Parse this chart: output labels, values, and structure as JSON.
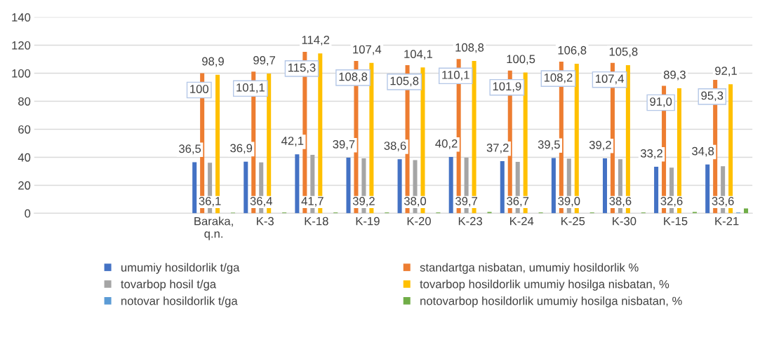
{
  "chart_data": {
    "type": "bar",
    "categories": [
      null,
      null,
      null,
      "Baraka,\nq.n.",
      "K-3",
      "K-18",
      "K-19",
      "K-20",
      "K-23",
      "K-24",
      "K-25",
      "K-30",
      "K-15",
      "K-21"
    ],
    "series": [
      {
        "name": "umumiy hosildorlik t/ga",
        "color": "#4472c4",
        "values": [
          null,
          null,
          null,
          36.5,
          36.9,
          42.1,
          39.7,
          38.6,
          40.2,
          37.2,
          39.5,
          39.2,
          33.2,
          34.8
        ],
        "value_labels": [
          null,
          null,
          null,
          "36,5",
          "36,9",
          "42,1",
          "39,7",
          "38,6",
          "40,2",
          "37,2",
          "39,5",
          "39,2",
          "33,2",
          "34,8"
        ]
      },
      {
        "name": "standartga nisbatan, umumiy hosildorlik %",
        "color": "#ed7d31",
        "values": [
          null,
          null,
          null,
          100,
          101.1,
          115.3,
          108.8,
          105.8,
          110.1,
          101.9,
          108.2,
          107.4,
          91.0,
          95.3
        ],
        "value_labels": [
          null,
          null,
          null,
          "100",
          "101,1",
          "115,3",
          "108,8",
          "105,8",
          "110,1",
          "101,9",
          "108,2",
          "107,4",
          "91,0",
          "95,3"
        ]
      },
      {
        "name": "tovarbop hosil t/ga",
        "color": "#a5a5a5",
        "values": [
          null,
          null,
          null,
          36.1,
          36.4,
          41.7,
          39.2,
          38.0,
          39.7,
          36.7,
          39.0,
          38.6,
          32.6,
          33.6
        ],
        "value_labels": [
          null,
          null,
          null,
          "36,1",
          "36,4",
          "41,7",
          "39,2",
          "38,0",
          "39,7",
          "36,7",
          "39,0",
          "38,6",
          "32,6",
          "33,6"
        ]
      },
      {
        "name": "tovarbop hosildorlik umumiy hosilga nisbatan, %",
        "color": "#ffc000",
        "values": [
          null,
          null,
          null,
          98.9,
          99.7,
          114.2,
          107.4,
          104.1,
          108.8,
          100.5,
          106.8,
          105.8,
          89.3,
          92.1
        ],
        "value_labels": [
          null,
          null,
          null,
          "98,9",
          "99,7",
          "114,2",
          "107,4",
          "104,1",
          "108,8",
          "100,5",
          "106,8",
          "105,8",
          "89,3",
          "92,1"
        ]
      },
      {
        "name": "notovar hosildorlik t/ga",
        "color": "#5b9bd5",
        "values": [
          null,
          null,
          null,
          0,
          0,
          0,
          0,
          0,
          0,
          0,
          0,
          0,
          0,
          0.6
        ]
      },
      {
        "name": "notovarbop hosildorlik umumiy hosilga nisbatan, %",
        "color": "#70ad47",
        "values": [
          null,
          null,
          null,
          0.5,
          0.6,
          0.6,
          0.6,
          0.6,
          1.0,
          0.6,
          0.6,
          0.6,
          1.0,
          3.5
        ]
      }
    ],
    "ylim": [
      0,
      140
    ],
    "yticks": [
      0,
      20,
      40,
      60,
      80,
      100,
      120,
      140
    ],
    "grid": "y",
    "legend": "bottom"
  }
}
